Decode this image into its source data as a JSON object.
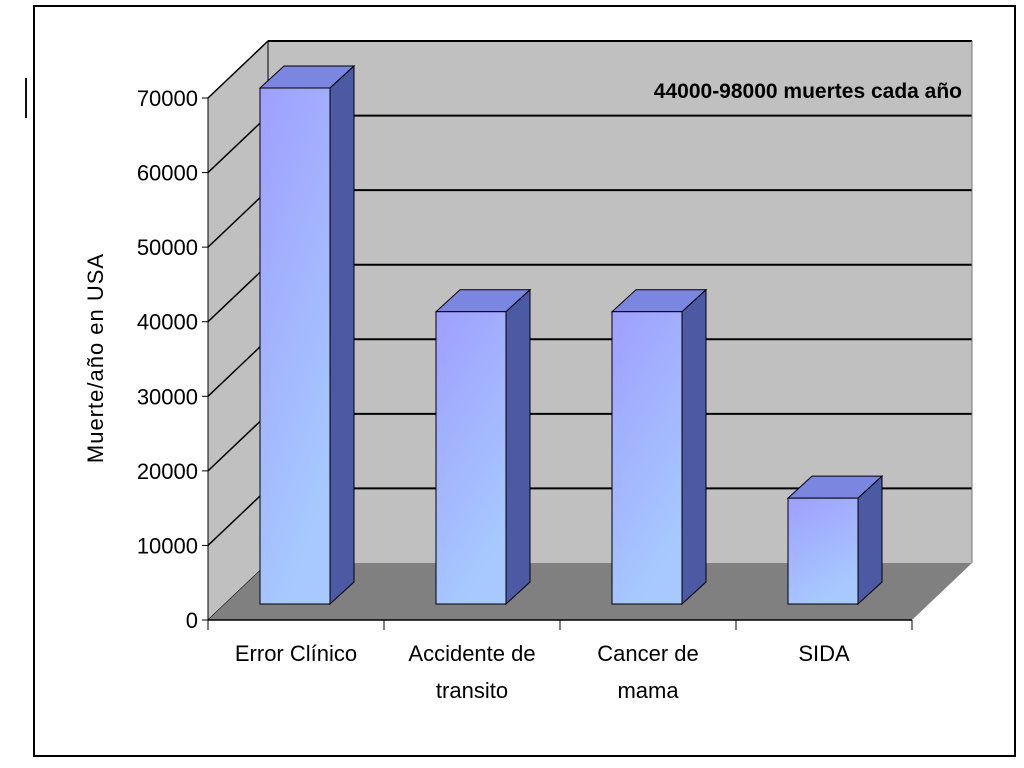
{
  "chart_data": {
    "type": "bar",
    "categories": [
      [
        "Error Clínico"
      ],
      [
        "Accidente de",
        "transito"
      ],
      [
        "Cancer de",
        "mama"
      ],
      [
        "SIDA"
      ]
    ],
    "values": [
      70000,
      40000,
      40000,
      15000
    ],
    "ylabel": "Muerte/año en USA",
    "ylim": [
      0,
      70000
    ],
    "yticks": [
      "0",
      "10000",
      "20000",
      "30000",
      "40000",
      "50000",
      "60000",
      "70000"
    ],
    "annotation": "44000-98000 muertes cada año",
    "grid": true,
    "three_d": true
  },
  "colors": {
    "wall": "#c0c0c0",
    "floor": "#808080",
    "bar_front_top": "#9f9ffe",
    "bar_front_bottom": "#a7c9ff",
    "bar_top": "#7a86e0",
    "bar_side": "#4b5aa2"
  }
}
